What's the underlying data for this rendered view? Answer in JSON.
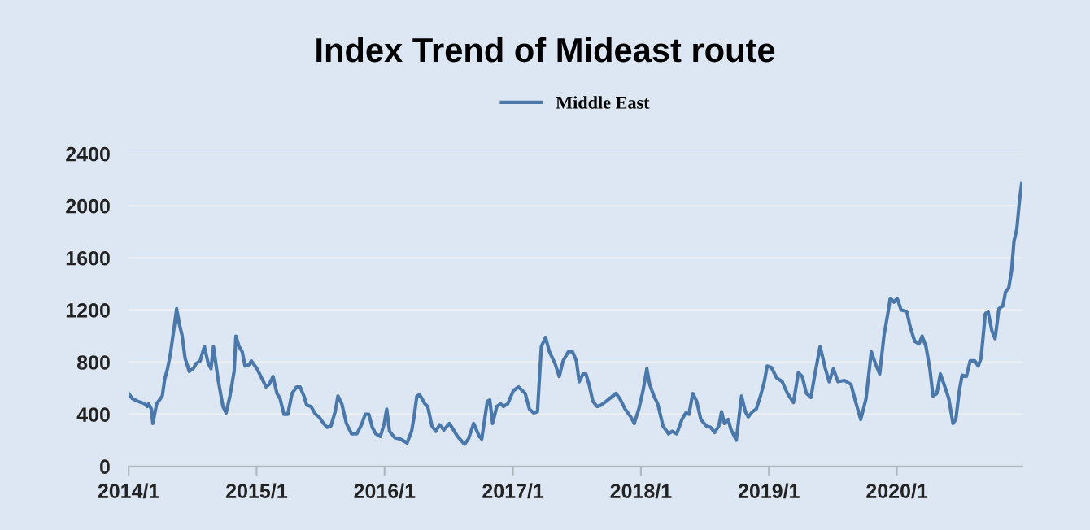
{
  "chart_data": {
    "type": "line",
    "title": "Index Trend of Mideast route",
    "xlim": [
      "2014-01-01",
      "2020-12-24"
    ],
    "ylim": [
      0,
      2400
    ],
    "xticks": [
      {
        "value": "2014-01",
        "label": "2014/1"
      },
      {
        "value": "2015-01",
        "label": "2015/1"
      },
      {
        "value": "2016-01",
        "label": "2016/1"
      },
      {
        "value": "2017-01",
        "label": "2017/1"
      },
      {
        "value": "2018-01",
        "label": "2018/1"
      },
      {
        "value": "2019-01",
        "label": "2019/1"
      },
      {
        "value": "2020-01",
        "label": "2020/1"
      }
    ],
    "yticks": [
      0,
      400,
      800,
      1200,
      1600,
      2000,
      2400
    ],
    "grid": "y",
    "legend": "top",
    "marker": "none",
    "line_style": "solid",
    "series": [
      {
        "name": "Middle East",
        "color": "#4a78ab",
        "x": [
          "2014-01-01",
          "2014-01-12",
          "2014-01-27",
          "2014-02-16",
          "2014-02-23",
          "2014-02-27",
          "2014-03-07",
          "2014-03-11",
          "2014-03-22",
          "2014-04-07",
          "2014-04-14",
          "2014-04-22",
          "2014-04-30",
          "2014-05-12",
          "2014-05-18",
          "2014-05-26",
          "2014-06-03",
          "2014-06-11",
          "2014-06-23",
          "2014-07-04",
          "2014-07-13",
          "2014-07-24",
          "2014-08-05",
          "2014-08-16",
          "2014-08-24",
          "2014-08-31",
          "2014-09-13",
          "2014-09-27",
          "2014-10-06",
          "2014-10-17",
          "2014-10-29",
          "2014-11-03",
          "2014-11-12",
          "2014-11-21",
          "2014-11-29",
          "2014-12-10",
          "2014-12-17",
          "2015-01-02",
          "2015-01-17",
          "2015-01-28",
          "2015-02-06",
          "2015-02-17",
          "2015-02-28",
          "2015-03-09",
          "2015-03-20",
          "2015-03-31",
          "2015-04-12",
          "2015-04-25",
          "2015-05-05",
          "2015-05-16",
          "2015-05-24",
          "2015-06-05",
          "2015-06-18",
          "2015-06-28",
          "2015-07-11",
          "2015-07-21",
          "2015-08-01",
          "2015-08-13",
          "2015-08-21",
          "2015-09-01",
          "2015-09-14",
          "2015-09-29",
          "2015-10-14",
          "2015-10-27",
          "2015-11-07",
          "2015-11-17",
          "2015-11-27",
          "2015-12-07",
          "2015-12-20",
          "2015-12-31",
          "2016-01-07",
          "2016-01-15",
          "2016-01-30",
          "2016-02-15",
          "2016-03-05",
          "2016-03-18",
          "2016-03-25",
          "2016-04-02",
          "2016-04-10",
          "2016-04-25",
          "2016-05-03",
          "2016-05-15",
          "2016-05-26",
          "2016-06-06",
          "2016-06-18",
          "2016-07-04",
          "2016-07-27",
          "2016-08-16",
          "2016-08-27",
          "2016-09-11",
          "2016-09-27",
          "2016-10-04",
          "2016-10-20",
          "2016-10-27",
          "2016-11-04",
          "2016-11-16",
          "2016-11-27",
          "2016-12-05",
          "2016-12-17",
          "2017-01-02",
          "2017-01-17",
          "2017-02-05",
          "2017-02-17",
          "2017-03-01",
          "2017-03-12",
          "2017-03-23",
          "2017-04-04",
          "2017-04-15",
          "2017-05-01",
          "2017-05-13",
          "2017-05-24",
          "2017-06-08",
          "2017-06-20",
          "2017-07-01",
          "2017-07-09",
          "2017-07-20",
          "2017-07-28",
          "2017-08-06",
          "2017-08-17",
          "2017-08-29",
          "2017-09-09",
          "2017-09-24",
          "2017-10-22",
          "2017-11-02",
          "2017-11-17",
          "2017-12-03",
          "2017-12-13",
          "2017-12-26",
          "2018-01-07",
          "2018-01-18",
          "2018-01-26",
          "2018-02-07",
          "2018-02-18",
          "2018-03-05",
          "2018-03-21",
          "2018-03-31",
          "2018-04-13",
          "2018-04-28",
          "2018-05-09",
          "2018-05-18",
          "2018-05-29",
          "2018-06-09",
          "2018-06-21",
          "2018-07-07",
          "2018-07-19",
          "2018-07-30",
          "2018-08-11",
          "2018-08-19",
          "2018-08-27",
          "2018-09-07",
          "2018-09-14",
          "2018-09-30",
          "2018-10-15",
          "2018-10-26",
          "2018-11-03",
          "2018-11-15",
          "2018-11-26",
          "2018-12-08",
          "2018-12-19",
          "2018-12-27",
          "2019-01-08",
          "2019-01-23",
          "2019-02-08",
          "2019-02-23",
          "2019-03-12",
          "2019-03-26",
          "2019-04-06",
          "2019-04-18",
          "2019-05-01",
          "2019-05-11",
          "2019-05-27",
          "2019-06-11",
          "2019-06-22",
          "2019-07-04",
          "2019-07-17",
          "2019-08-04",
          "2019-08-23",
          "2019-09-07",
          "2019-09-20",
          "2019-10-05",
          "2019-10-20",
          "2019-11-02",
          "2019-11-13",
          "2019-11-25",
          "2019-12-06",
          "2019-12-13",
          "2019-12-24",
          "2020-01-02",
          "2020-01-13",
          "2020-01-29",
          "2020-02-09",
          "2020-02-21",
          "2020-03-04",
          "2020-03-13",
          "2020-03-24",
          "2020-04-04",
          "2020-04-13",
          "2020-04-24",
          "2020-05-04",
          "2020-05-17",
          "2020-05-28",
          "2020-06-09",
          "2020-06-17",
          "2020-06-27",
          "2020-07-05",
          "2020-07-17",
          "2020-07-28",
          "2020-08-10",
          "2020-08-20",
          "2020-08-28",
          "2020-09-09",
          "2020-09-17",
          "2020-09-28",
          "2020-10-07",
          "2020-10-18",
          "2020-10-29",
          "2020-11-06",
          "2020-11-15",
          "2020-11-23",
          "2020-11-30",
          "2020-12-08",
          "2020-12-16",
          "2020-12-22"
        ],
        "values": [
          560,
          520,
          500,
          480,
          460,
          480,
          440,
          330,
          480,
          540,
          670,
          750,
          860,
          1090,
          1210,
          1090,
          1000,
          830,
          730,
          750,
          790,
          810,
          920,
          790,
          750,
          920,
          670,
          460,
          410,
          540,
          730,
          1000,
          920,
          880,
          770,
          780,
          810,
          750,
          670,
          610,
          630,
          690,
          560,
          520,
          400,
          400,
          560,
          610,
          610,
          540,
          470,
          460,
          400,
          380,
          330,
          300,
          310,
          420,
          540,
          480,
          330,
          250,
          250,
          320,
          400,
          400,
          300,
          250,
          230,
          330,
          440,
          270,
          220,
          210,
          180,
          270,
          380,
          540,
          550,
          480,
          460,
          310,
          270,
          320,
          280,
          330,
          230,
          170,
          210,
          330,
          230,
          210,
          500,
          510,
          330,
          460,
          480,
          460,
          480,
          580,
          610,
          560,
          440,
          410,
          420,
          920,
          990,
          880,
          790,
          690,
          810,
          880,
          880,
          810,
          650,
          710,
          710,
          630,
          500,
          460,
          470,
          500,
          560,
          520,
          440,
          380,
          330,
          440,
          580,
          750,
          630,
          540,
          480,
          310,
          250,
          270,
          250,
          360,
          410,
          400,
          560,
          500,
          360,
          310,
          300,
          260,
          310,
          420,
          330,
          360,
          290,
          200,
          540,
          420,
          380,
          420,
          440,
          540,
          650,
          770,
          760,
          680,
          650,
          560,
          490,
          720,
          690,
          560,
          530,
          690,
          920,
          750,
          650,
          750,
          650,
          660,
          630,
          480,
          360,
          520,
          880,
          780,
          710,
          1000,
          1170,
          1290,
          1260,
          1290,
          1200,
          1190,
          1060,
          960,
          940,
          1000,
          920,
          750,
          540,
          560,
          710,
          610,
          520,
          330,
          360,
          580,
          700,
          690,
          810,
          810,
          770,
          830,
          1170,
          1190,
          1040,
          980,
          1210,
          1230,
          1340,
          1370,
          1500,
          1730,
          1820,
          2050,
          2170
        ]
      }
    ]
  }
}
